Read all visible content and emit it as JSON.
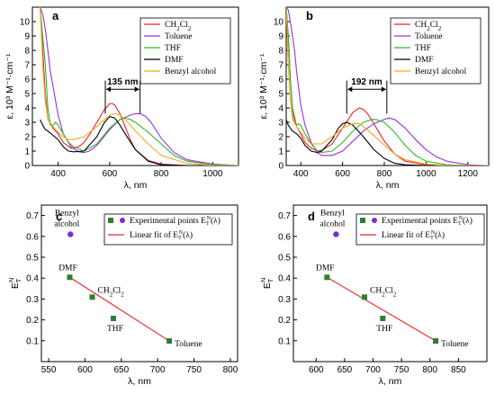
{
  "chart_data": [
    {
      "panel": "a",
      "type": "line",
      "xlabel": "λ, nm",
      "ylabel": "ε, 10³ M⁻¹·cm⁻¹",
      "xlim": [
        300,
        1100
      ],
      "ylim": [
        0,
        11
      ],
      "xticks": [
        400,
        600,
        800,
        1000
      ],
      "yticks": [
        0,
        1,
        2,
        3,
        4,
        5,
        6,
        7,
        8,
        9,
        10
      ],
      "annotation": "135 nm",
      "shift_arrow_x": [
        583,
        718
      ],
      "legend_position": "top-right",
      "series": [
        {
          "name": "CH2Cl2",
          "color": "#e8262b",
          "x": [
            330,
            340,
            350,
            360,
            380,
            400,
            420,
            450,
            480,
            500,
            520,
            550,
            580,
            600,
            610,
            620,
            640,
            660,
            680,
            700,
            750,
            800,
            900,
            1000,
            1100
          ],
          "y": [
            11,
            8,
            5,
            3.2,
            2.6,
            2.2,
            1.6,
            1.2,
            1.3,
            1.6,
            2.1,
            3.0,
            3.9,
            4.3,
            4.3,
            4.2,
            3.6,
            2.7,
            1.8,
            1.1,
            0.35,
            0.1,
            0,
            0,
            0
          ]
        },
        {
          "name": "Toluene",
          "color": "#9b30d9",
          "x": [
            330,
            340,
            350,
            360,
            370,
            380,
            400,
            420,
            450,
            480,
            500,
            520,
            550,
            600,
            640,
            680,
            700,
            720,
            740,
            760,
            800,
            850,
            900,
            1000,
            1100
          ],
          "y": [
            11,
            10.5,
            9.5,
            8,
            6.5,
            5.5,
            3.5,
            2.2,
            1.3,
            0.95,
            0.9,
            1.0,
            1.4,
            2.5,
            3.2,
            3.5,
            3.6,
            3.6,
            3.4,
            3.0,
            1.9,
            0.9,
            0.4,
            0.1,
            0
          ]
        },
        {
          "name": "THF",
          "color": "#2db82d",
          "x": [
            330,
            340,
            350,
            360,
            370,
            380,
            390,
            400,
            420,
            440,
            460,
            500,
            550,
            600,
            640,
            660,
            680,
            700,
            750,
            800,
            850,
            900,
            1000,
            1100
          ],
          "y": [
            11,
            9,
            7,
            4,
            2.8,
            2.8,
            3.0,
            2.8,
            2.2,
            1.6,
            1.3,
            1.0,
            1.5,
            2.6,
            3.2,
            3.3,
            3.2,
            3.0,
            2.3,
            1.5,
            0.7,
            0.3,
            0.05,
            0
          ]
        },
        {
          "name": "DMF",
          "color": "#000000",
          "x": [
            330,
            340,
            350,
            360,
            380,
            400,
            420,
            440,
            460,
            500,
            550,
            580,
            600,
            620,
            640,
            660,
            700,
            750,
            800,
            900,
            1000,
            1100
          ],
          "y": [
            3.2,
            2.8,
            2.5,
            2.4,
            2.1,
            1.8,
            1.3,
            1.0,
            0.95,
            1.0,
            2.0,
            3.0,
            3.4,
            3.3,
            2.8,
            2.2,
            1.1,
            0.3,
            0.05,
            0,
            0,
            0
          ]
        },
        {
          "name": "Benzyl alcohol",
          "color": "#f5a623",
          "x": [
            330,
            340,
            350,
            360,
            380,
            400,
            420,
            440,
            460,
            500,
            550,
            580,
            600,
            620,
            640,
            660,
            680,
            700,
            750,
            800,
            900,
            1000,
            1100
          ],
          "y": [
            11,
            7,
            4.5,
            3.2,
            2.7,
            2.3,
            2.0,
            1.8,
            1.8,
            2.0,
            2.7,
            3.2,
            3.5,
            3.6,
            3.5,
            3.2,
            2.8,
            2.4,
            1.5,
            0.7,
            0.15,
            0,
            0
          ]
        }
      ]
    },
    {
      "panel": "b",
      "type": "line",
      "xlabel": "λ, nm",
      "ylabel": "ε, 10³ M⁻¹·cm⁻¹",
      "xlim": [
        330,
        1300
      ],
      "ylim": [
        0,
        11
      ],
      "xticks": [
        400,
        600,
        800,
        1000,
        1200
      ],
      "yticks": [
        0,
        1,
        2,
        3,
        4,
        5,
        6,
        7,
        8,
        9,
        10
      ],
      "annotation": "192 nm",
      "shift_arrow_x": [
        620,
        812
      ],
      "legend_position": "top-right",
      "series": [
        {
          "name": "CH2Cl2",
          "color": "#e8262b",
          "x": [
            330,
            340,
            350,
            360,
            380,
            400,
            420,
            450,
            480,
            500,
            550,
            600,
            650,
            680,
            700,
            720,
            750,
            800,
            850,
            900,
            1000,
            1100,
            1200,
            1300
          ],
          "y": [
            11,
            9,
            6,
            4,
            2.7,
            2.2,
            1.6,
            1.2,
            1.0,
            1.05,
            1.5,
            2.6,
            3.7,
            4.0,
            3.9,
            3.6,
            2.9,
            1.7,
            0.8,
            0.3,
            0.05,
            0,
            0,
            0
          ]
        },
        {
          "name": "Toluene",
          "color": "#9b30d9",
          "x": [
            330,
            340,
            350,
            360,
            370,
            380,
            400,
            420,
            450,
            480,
            500,
            550,
            600,
            650,
            700,
            750,
            800,
            820,
            850,
            900,
            950,
            1000,
            1050,
            1100,
            1200,
            1300
          ],
          "y": [
            11,
            10.8,
            10,
            9,
            8,
            6.5,
            4.2,
            2.8,
            1.6,
            0.9,
            0.7,
            0.7,
            1.0,
            1.7,
            2.4,
            2.9,
            3.2,
            3.3,
            3.2,
            2.6,
            1.8,
            1.1,
            0.6,
            0.3,
            0.05,
            0
          ]
        },
        {
          "name": "THF",
          "color": "#2db82d",
          "x": [
            330,
            340,
            350,
            360,
            370,
            380,
            390,
            400,
            420,
            450,
            480,
            500,
            550,
            600,
            650,
            700,
            740,
            760,
            800,
            850,
            900,
            950,
            1000,
            1100,
            1200,
            1300
          ],
          "y": [
            11,
            9,
            6,
            3.8,
            2.9,
            2.8,
            2.9,
            2.8,
            2.2,
            1.5,
            1.0,
            0.9,
            1.0,
            1.6,
            2.4,
            3.0,
            3.2,
            3.2,
            3.0,
            2.3,
            1.4,
            0.7,
            0.3,
            0.05,
            0,
            0
          ]
        },
        {
          "name": "DMF",
          "color": "#000000",
          "x": [
            330,
            340,
            350,
            360,
            380,
            400,
            420,
            450,
            480,
            500,
            550,
            580,
            600,
            620,
            650,
            700,
            750,
            800,
            850,
            900,
            1000,
            1100,
            1200,
            1300
          ],
          "y": [
            3.2,
            2.8,
            2.6,
            2.4,
            2.2,
            1.9,
            1.4,
            1.0,
            0.9,
            1.0,
            1.8,
            2.6,
            2.9,
            3.0,
            2.8,
            2.0,
            1.1,
            0.5,
            0.15,
            0.05,
            0,
            0,
            0,
            0
          ]
        },
        {
          "name": "Benzyl alcohol",
          "color": "#f5a623",
          "x": [
            330,
            340,
            350,
            360,
            380,
            400,
            420,
            450,
            500,
            550,
            600,
            650,
            680,
            700,
            750,
            800,
            850,
            900,
            1000,
            1100,
            1200,
            1300
          ],
          "y": [
            11,
            7,
            4.5,
            3.2,
            2.7,
            2.3,
            1.9,
            1.5,
            1.5,
            2.0,
            2.6,
            2.9,
            2.9,
            2.7,
            2.1,
            1.4,
            0.8,
            0.4,
            0.1,
            0,
            0,
            0
          ]
        }
      ]
    },
    {
      "panel": "c",
      "type": "scatter",
      "xlabel": "λ, nm",
      "ylabel": "E_T^N",
      "xlim": [
        540,
        810
      ],
      "ylim": [
        0,
        0.75
      ],
      "xticks": [
        550,
        600,
        650,
        700,
        750,
        800
      ],
      "yticks": [
        0.1,
        0.2,
        0.3,
        0.4,
        0.5,
        0.6,
        0.7
      ],
      "legend_position": "top-right",
      "legend": [
        "Experimental points",
        "Linear fit of"
      ],
      "points": [
        {
          "label": "Benzyl alcohol",
          "x": 580,
          "y": 0.61,
          "marker": "circle",
          "color": "#7b2ad6"
        },
        {
          "label": "DMF",
          "x": 579,
          "y": 0.404,
          "marker": "square",
          "color": "#2e7d32"
        },
        {
          "label": "CH2Cl2",
          "x": 610,
          "y": 0.309,
          "marker": "square",
          "color": "#2e7d32"
        },
        {
          "label": "THF",
          "x": 639,
          "y": 0.207,
          "marker": "square",
          "color": "#2e7d32"
        },
        {
          "label": "Toluene",
          "x": 716,
          "y": 0.099,
          "marker": "square",
          "color": "#2e7d32"
        }
      ],
      "fit_line": {
        "x": [
          579,
          716
        ],
        "y": [
          0.404,
          0.099
        ],
        "color": "#e8262b"
      }
    },
    {
      "panel": "d",
      "type": "scatter",
      "xlabel": "λ, nm",
      "ylabel": "E_T^N",
      "xlim": [
        560,
        900
      ],
      "ylim": [
        0,
        0.75
      ],
      "xticks": [
        600,
        650,
        700,
        750,
        800,
        850
      ],
      "yticks": [
        0.1,
        0.2,
        0.3,
        0.4,
        0.5,
        0.6,
        0.7
      ],
      "legend_position": "top-right",
      "legend": [
        "Experimental points",
        "Linear fit of"
      ],
      "points": [
        {
          "label": "Benzyl alcohol",
          "x": 635,
          "y": 0.61,
          "marker": "circle",
          "color": "#7b2ad6"
        },
        {
          "label": "DMF",
          "x": 619,
          "y": 0.404,
          "marker": "square",
          "color": "#2e7d32"
        },
        {
          "label": "CH2Cl2",
          "x": 685,
          "y": 0.309,
          "marker": "square",
          "color": "#2e7d32"
        },
        {
          "label": "THF",
          "x": 717,
          "y": 0.207,
          "marker": "square",
          "color": "#2e7d32"
        },
        {
          "label": "Toluene",
          "x": 810,
          "y": 0.099,
          "marker": "square",
          "color": "#2e7d32"
        }
      ],
      "fit_line": {
        "x": [
          619,
          810
        ],
        "y": [
          0.404,
          0.099
        ],
        "color": "#e8262b"
      }
    }
  ]
}
